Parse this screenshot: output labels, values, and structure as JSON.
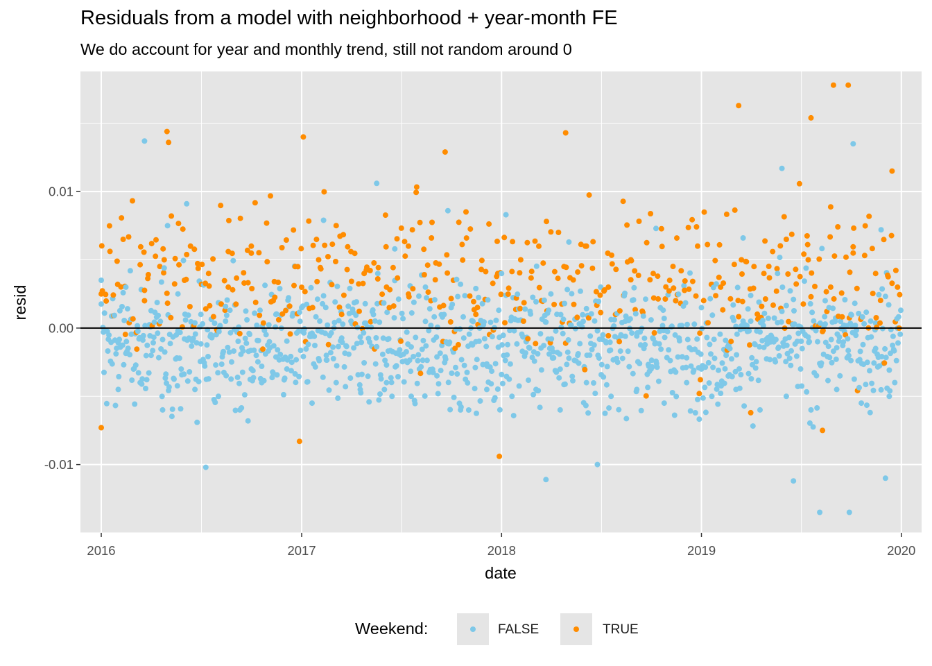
{
  "title": "Residuals from a model with neighborhood + year-month FE",
  "subtitle": "We do account for year and monthly trend, still not random around 0",
  "legend": {
    "title": "Weekend:",
    "items": [
      {
        "label": "FALSE",
        "color": "#7ec8e8"
      },
      {
        "label": "TRUE",
        "color": "#ff8c00"
      }
    ]
  },
  "chart_data": {
    "type": "scatter",
    "xlabel": "date",
    "ylabel": "resid",
    "xlim": [
      "2015-11-24",
      "2020-02-07"
    ],
    "ylim": [
      -0.015,
      0.0188
    ],
    "x_ticks": [
      "2016",
      "2017",
      "2018",
      "2019",
      "2020"
    ],
    "y_ticks": [
      "-0.01",
      "0.00",
      "0.01"
    ],
    "y_tick_values": [
      -0.01,
      0,
      0.01
    ],
    "reference_line": 0,
    "grid": true,
    "legend_position": "bottom",
    "point_count_per_series_approx": [
      1039,
      420
    ],
    "series": [
      {
        "name": "FALSE",
        "color": "#7ec8e8",
        "x": [
          "2016-01-01",
          "2016-02-15",
          "2016-04-01",
          "2016-05-20",
          "2016-07-01",
          "2016-08-15",
          "2016-10-01",
          "2016-11-15",
          "2017-01-01",
          "2017-02-15",
          "2017-04-01",
          "2017-05-20",
          "2017-07-01",
          "2017-08-15",
          "2017-10-01",
          "2017-11-15",
          "2018-01-01",
          "2018-02-15",
          "2018-04-01",
          "2018-05-20",
          "2018-07-01",
          "2018-08-15",
          "2018-10-01",
          "2018-11-15",
          "2019-01-01",
          "2019-02-15",
          "2019-04-01",
          "2019-05-20",
          "2019-07-01",
          "2019-08-15",
          "2019-10-01",
          "2019-11-15",
          "2016-03-20",
          "2016-07-10",
          "2017-05-18",
          "2018-03-23",
          "2018-06-25",
          "2019-06-18",
          "2019-08-05",
          "2019-09-28",
          "2019-12-03",
          "2016-05-01",
          "2016-06-05",
          "2016-09-25",
          "2017-02-10",
          "2017-06-20",
          "2017-09-25",
          "2018-01-09",
          "2018-05-04",
          "2018-10-10",
          "2019-03-18",
          "2019-05-28",
          "2019-10-05",
          "2019-11-25",
          "2016-02-01",
          "2016-03-12",
          "2016-04-22",
          "2016-06-20",
          "2016-08-02",
          "2016-09-10",
          "2016-10-20",
          "2016-12-05",
          "2017-01-20",
          "2017-03-05",
          "2017-04-18",
          "2017-06-05",
          "2017-07-20",
          "2017-09-05",
          "2017-10-18",
          "2017-12-05",
          "2018-01-20",
          "2018-03-05",
          "2018-04-18",
          "2018-06-05",
          "2018-07-20",
          "2018-09-05",
          "2018-10-25",
          "2018-12-05",
          "2019-01-20",
          "2019-03-05",
          "2019-04-18",
          "2019-06-05",
          "2019-07-20",
          "2019-09-05",
          "2019-10-20",
          "2019-12-10"
        ],
        "y": [
          0.0035,
          0.003,
          -0.002,
          0.0025,
          0.001,
          0.0005,
          -0.003,
          0.001,
          0.0015,
          -0.002,
          0.0005,
          0.004,
          -0.002,
          0.003,
          0.0015,
          -0.001,
          0.004,
          -0.001,
          0.0025,
          -0.002,
          0.003,
          0.0005,
          -0.003,
          0.002,
          0.0015,
          -0.002,
          0.0005,
          0.004,
          -0.003,
          0.002,
          0.001,
          -0.0015,
          0.0137,
          -0.0102,
          0.0106,
          -0.0111,
          -0.01,
          -0.0112,
          -0.0135,
          -0.0135,
          -0.011,
          0.0075,
          0.0091,
          -0.0068,
          0.0079,
          0.0058,
          0.0086,
          0.0083,
          0.0063,
          0.0073,
          0.0066,
          0.0117,
          0.0135,
          0.0072,
          -0.0045,
          -0.004,
          -0.006,
          -0.0045,
          -0.005,
          -0.006,
          -0.004,
          -0.003,
          -0.0055,
          -0.004,
          -0.0045,
          -0.004,
          -0.005,
          -0.0035,
          -0.006,
          -0.0045,
          -0.005,
          -0.0045,
          -0.006,
          -0.004,
          -0.005,
          -0.0045,
          -0.0055,
          -0.004,
          -0.005,
          -0.0045,
          -0.006,
          -0.005,
          -0.006,
          -0.0045,
          -0.0055,
          -0.005
        ]
      },
      {
        "name": "TRUE",
        "color": "#ff8c00",
        "x": [
          "2016-01-01",
          "2016-02-10",
          "2016-03-20",
          "2016-04-25",
          "2016-06-01",
          "2016-07-15",
          "2016-08-20",
          "2016-10-01",
          "2016-11-10",
          "2016-12-20",
          "2017-02-01",
          "2017-03-15",
          "2017-04-25",
          "2017-06-05",
          "2017-07-15",
          "2017-08-25",
          "2017-10-05",
          "2017-11-15",
          "2017-12-25",
          "2018-02-05",
          "2018-03-15",
          "2018-04-25",
          "2018-06-05",
          "2018-07-15",
          "2018-08-25",
          "2018-10-05",
          "2018-11-15",
          "2018-12-25",
          "2019-02-05",
          "2019-03-15",
          "2019-04-25",
          "2019-06-05",
          "2019-07-15",
          "2019-08-25",
          "2019-10-05",
          "2019-11-15",
          "2019-12-25",
          "2016-04-30",
          "2016-05-03",
          "2017-01-04",
          "2017-09-20",
          "2018-04-28",
          "2019-03-10",
          "2019-07-20",
          "2019-08-30",
          "2019-09-26",
          "2019-12-15",
          "2016-01-01",
          "2016-12-28",
          "2017-12-28",
          "2018-12-28",
          "2019-04-01",
          "2019-08-10"
        ],
        "y": [
          0.0025,
          0.0065,
          0.002,
          0.005,
          0.0035,
          0.004,
          0.003,
          0.006,
          0.002,
          0.0045,
          0.005,
          0.001,
          0.004,
          0.003,
          0.006,
          0.002,
          0.0035,
          0.001,
          0.004,
          0.005,
          0.002,
          0.0045,
          0.006,
          0.003,
          0.005,
          0.004,
          0.002,
          0.006,
          0.003,
          0.005,
          0.004,
          0.0065,
          0.005,
          0.003,
          0.0055,
          0.004,
          0.003,
          0.0144,
          0.0136,
          0.014,
          0.0129,
          0.0143,
          0.0163,
          0.0154,
          0.0178,
          0.0178,
          0.0115,
          -0.0073,
          -0.0083,
          -0.0094,
          -0.0048,
          -0.0062,
          -0.0075
        ]
      }
    ]
  }
}
